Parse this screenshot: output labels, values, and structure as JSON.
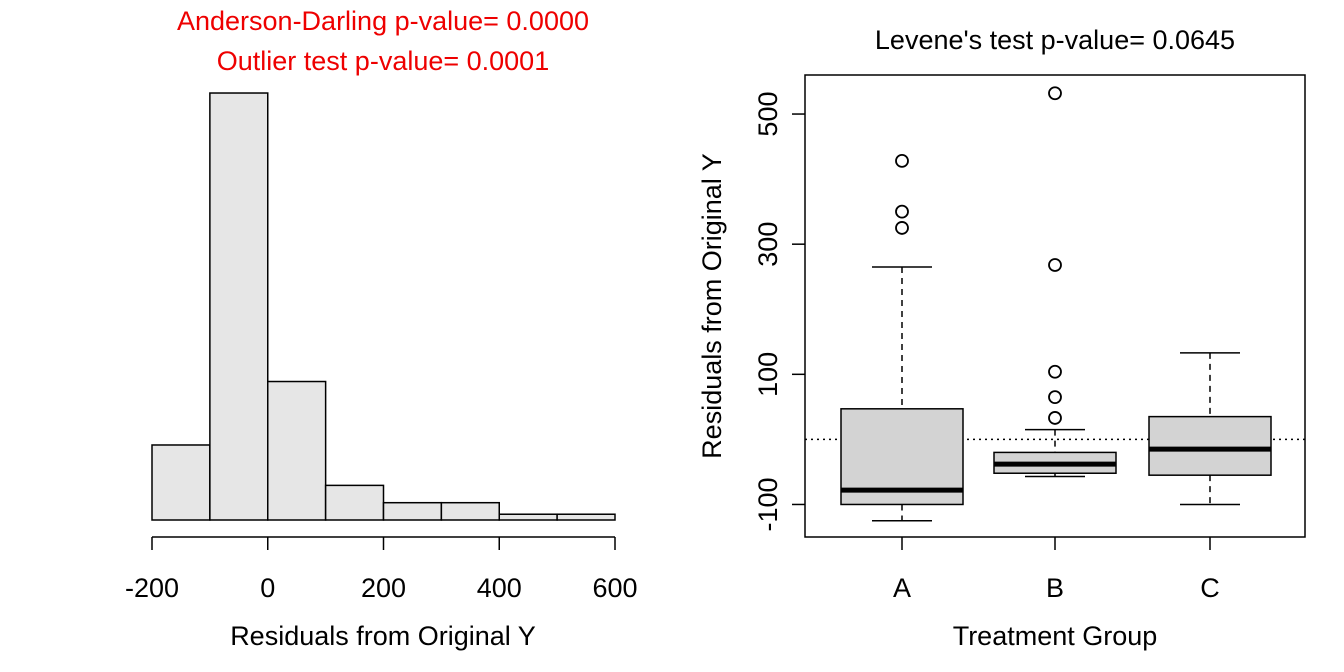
{
  "chart_data": [
    {
      "type": "bar",
      "subtype": "histogram",
      "title_lines": [
        "Anderson-Darling p-value= 0.0000",
        "Outlier test p-value= 0.0001"
      ],
      "title_color": "#ee0000",
      "xlabel": "Residuals from Original Y",
      "ylabel": "",
      "xlim": [
        -200,
        600
      ],
      "xticks": [
        "-200",
        "0",
        "200",
        "400",
        "600"
      ],
      "bin_edges": [
        -200,
        -100,
        0,
        100,
        200,
        300,
        400,
        500,
        600
      ],
      "counts": [
        13,
        74,
        24,
        6,
        3,
        3,
        1,
        1
      ],
      "y_axis_shown": false,
      "bar_color": "#e6e6e6"
    },
    {
      "type": "box",
      "title": "Levene's test p-value= 0.0645",
      "xlabel": "Treatment Group",
      "ylabel": "Residuals from Original Y",
      "ylim": [
        -150,
        560
      ],
      "yticks": [
        "-100",
        "100",
        "300",
        "500"
      ],
      "reference_line": 0,
      "box_color": "#d3d3d3",
      "groups": [
        {
          "name": "A",
          "whisker_low": -125,
          "q1": -100,
          "median": -78,
          "q3": 47,
          "whisker_high": 265,
          "outliers": [
            428,
            350,
            325
          ]
        },
        {
          "name": "B",
          "whisker_low": -57,
          "q1": -52,
          "median": -38,
          "q3": -20,
          "whisker_high": 15,
          "outliers": [
            532,
            268,
            104,
            65,
            33
          ]
        },
        {
          "name": "C",
          "whisker_low": -100,
          "q1": -55,
          "median": -15,
          "q3": 35,
          "whisker_high": 133,
          "outliers": []
        }
      ]
    }
  ]
}
